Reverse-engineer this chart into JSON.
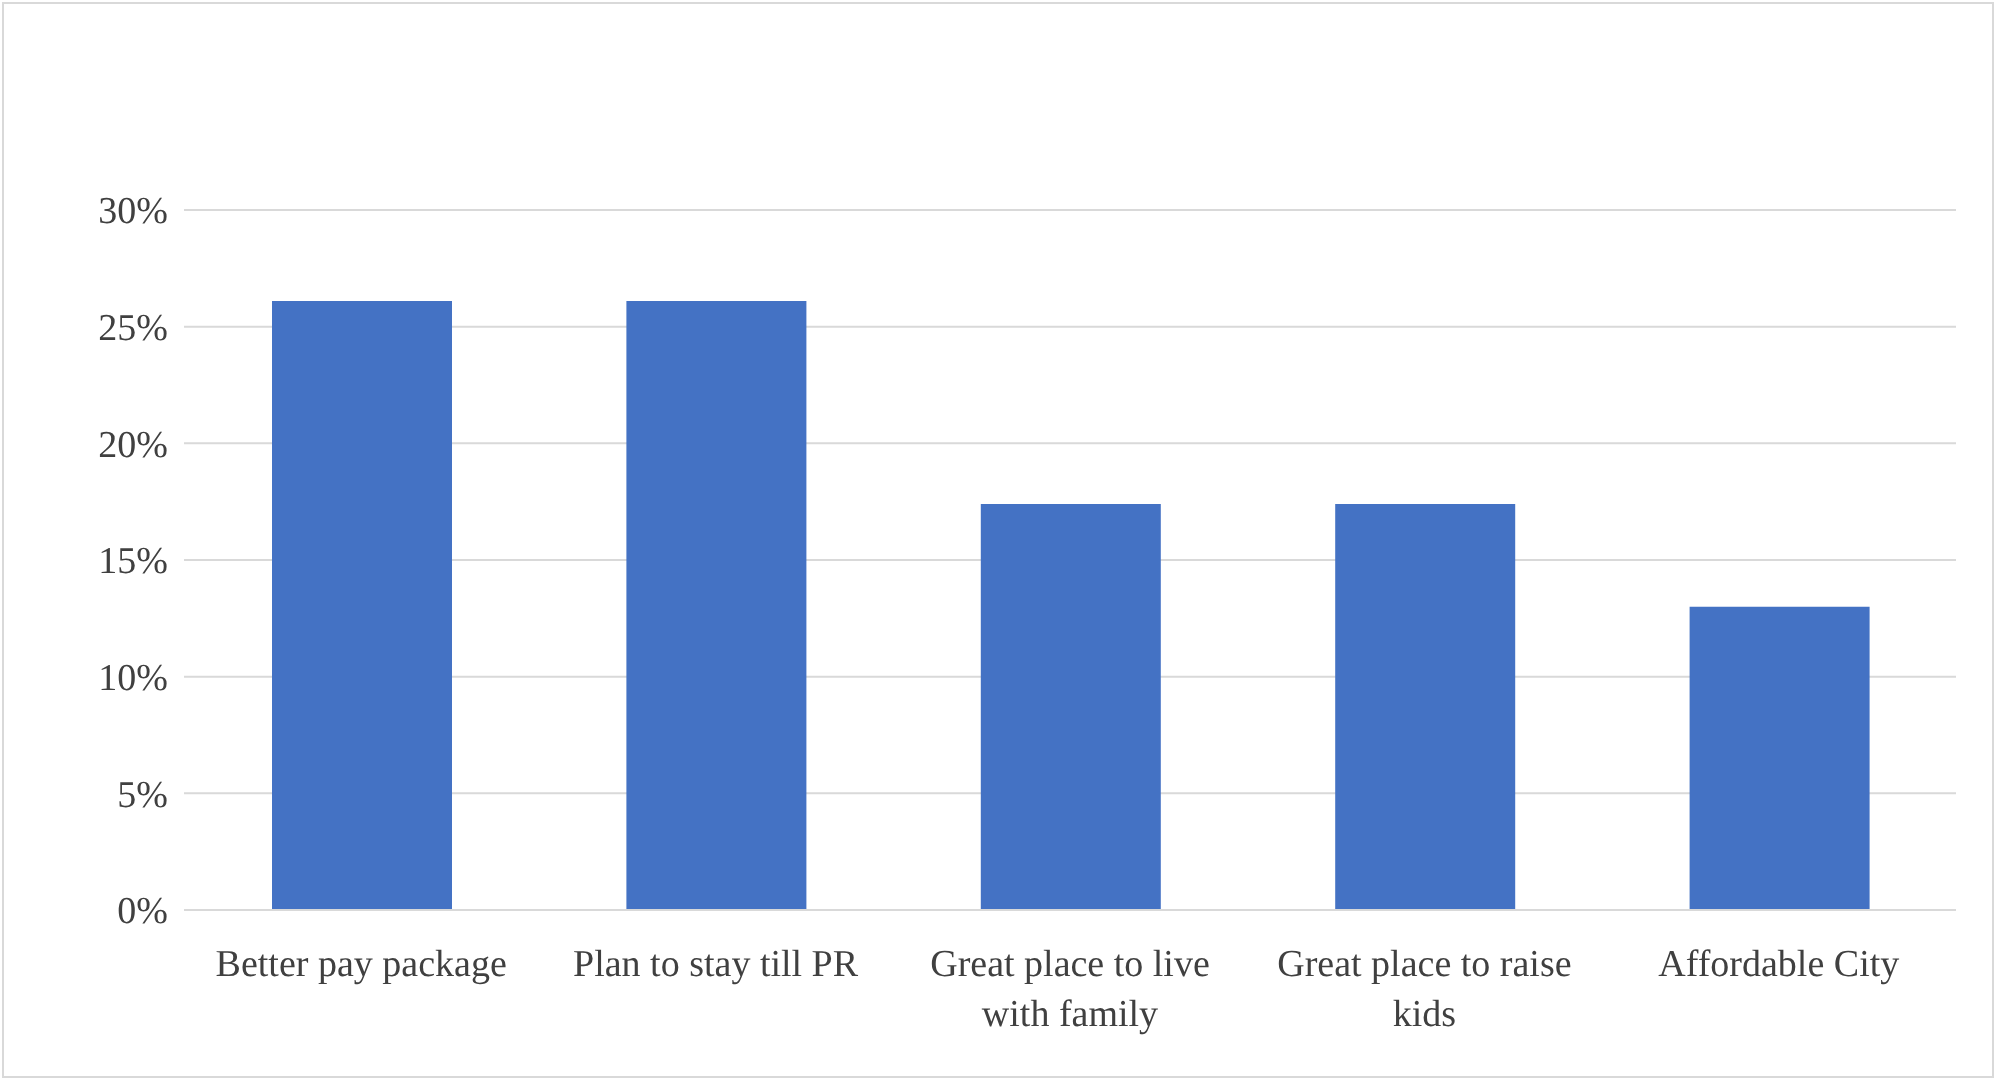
{
  "chart_data": {
    "type": "bar",
    "categories": [
      "Better pay package",
      "Plan to stay till PR",
      "Great place to live with family",
      "Great place to raise kids",
      "Affordable City"
    ],
    "values": [
      26.1,
      26.1,
      17.4,
      17.4,
      13.0
    ],
    "color": "#4472c4",
    "ylim": [
      0,
      30
    ],
    "yticks": [
      {
        "value": 0,
        "label": "0%"
      },
      {
        "value": 5,
        "label": "5%"
      },
      {
        "value": 10,
        "label": "10%"
      },
      {
        "value": 15,
        "label": "15%"
      },
      {
        "value": 20,
        "label": "20%"
      },
      {
        "value": 25,
        "label": "25%"
      },
      {
        "value": 30,
        "label": "30%"
      }
    ],
    "grid": "y",
    "legend": false
  }
}
